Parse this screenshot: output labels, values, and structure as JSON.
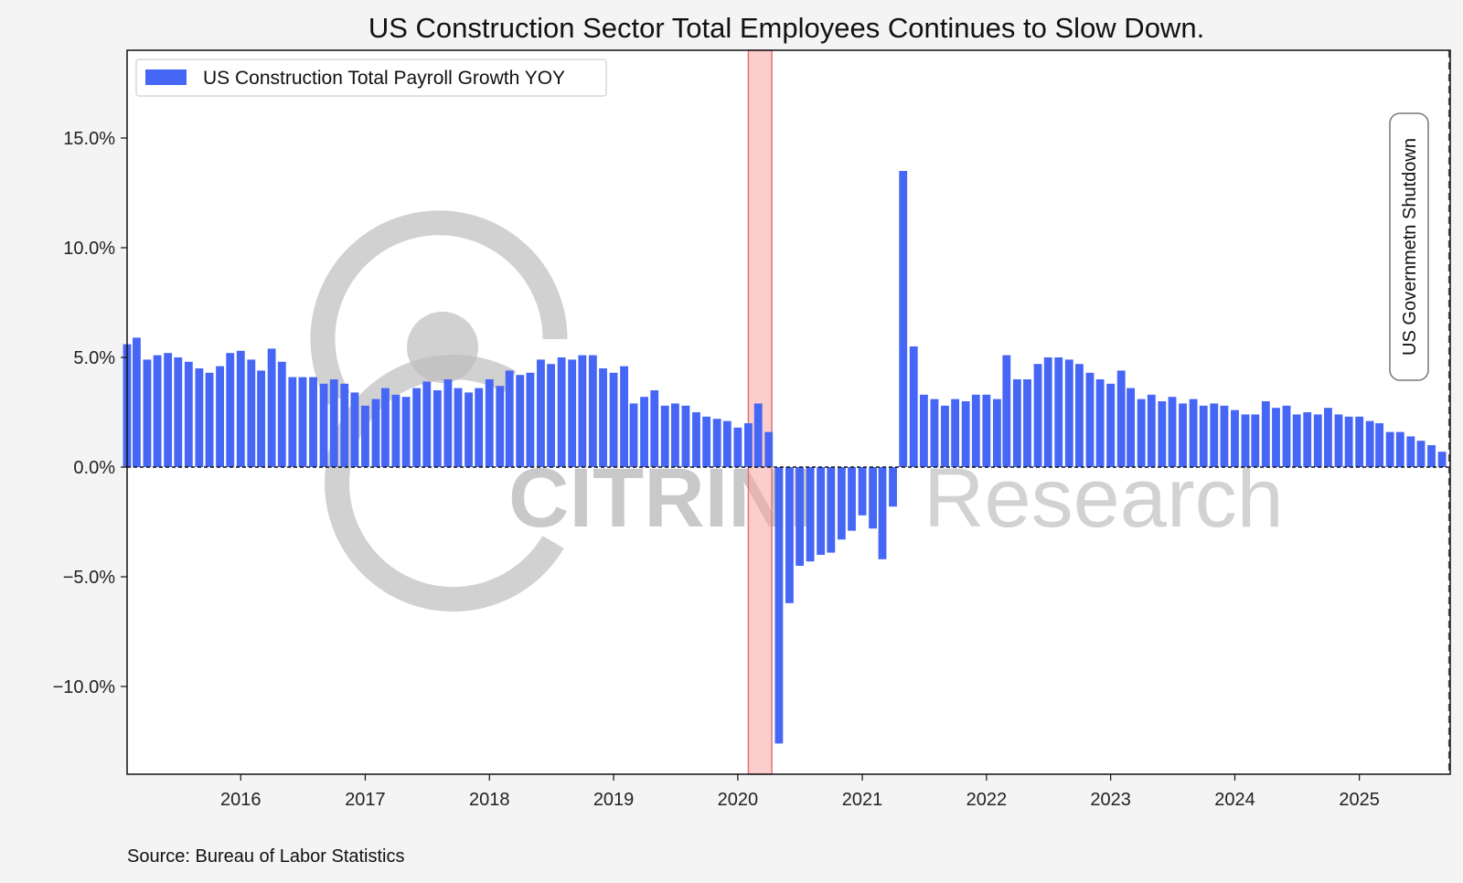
{
  "chart_data": {
    "type": "bar",
    "title": "US Construction Sector Total Employees Continues to Slow Down.",
    "source": "Source: Bureau of Labor Statistics",
    "legend": {
      "label": "US Construction Total Payroll Growth YOY",
      "placement": "top-left"
    },
    "ylim": [
      -14.0,
      19.0
    ],
    "y_ticks": [
      -10,
      -5,
      0,
      5,
      10,
      15
    ],
    "y_tick_labels": [
      "−10.0%",
      "−5.0%",
      "0.0%",
      "5.0%",
      "10.0%",
      "15.0%"
    ],
    "xlim": [
      "2015-02-01",
      "2025-09-25"
    ],
    "x_ticks": [
      "2016-01-01",
      "2017-01-01",
      "2018-01-01",
      "2019-01-01",
      "2020-01-01",
      "2021-01-01",
      "2022-01-01",
      "2023-01-01",
      "2024-01-01",
      "2025-01-01"
    ],
    "x_tick_labels": [
      "2016",
      "2017",
      "2018",
      "2019",
      "2020",
      "2021",
      "2022",
      "2023",
      "2024",
      "2025"
    ],
    "grid": false,
    "colors": {
      "bar": "#4666f5",
      "recession": "#f8a5a5",
      "recession_edge": "#e27575",
      "background": "#f4f4f4",
      "plot_background": "#ffffff"
    },
    "recession": {
      "start": "2020-02-01",
      "end": "2020-04-10"
    },
    "zero_line": 0,
    "annotation": {
      "label": "US Governmetn Shutdown",
      "date": "2025-09-22"
    },
    "watermark": {
      "brand": "CITRINI",
      "word": "Research"
    },
    "series": [
      {
        "values": [
          {
            "date": "2015-02",
            "value": 5.6
          },
          {
            "date": "2015-03",
            "value": 5.9
          },
          {
            "date": "2015-04",
            "value": 4.9
          },
          {
            "date": "2015-05",
            "value": 5.1
          },
          {
            "date": "2015-06",
            "value": 5.2
          },
          {
            "date": "2015-07",
            "value": 5.0
          },
          {
            "date": "2015-08",
            "value": 4.8
          },
          {
            "date": "2015-09",
            "value": 4.5
          },
          {
            "date": "2015-10",
            "value": 4.3
          },
          {
            "date": "2015-11",
            "value": 4.6
          },
          {
            "date": "2015-12",
            "value": 5.2
          },
          {
            "date": "2016-01",
            "value": 5.3
          },
          {
            "date": "2016-02",
            "value": 4.9
          },
          {
            "date": "2016-03",
            "value": 4.4
          },
          {
            "date": "2016-04",
            "value": 5.4
          },
          {
            "date": "2016-05",
            "value": 4.8
          },
          {
            "date": "2016-06",
            "value": 4.1
          },
          {
            "date": "2016-07",
            "value": 4.1
          },
          {
            "date": "2016-08",
            "value": 4.1
          },
          {
            "date": "2016-09",
            "value": 3.8
          },
          {
            "date": "2016-10",
            "value": 4.0
          },
          {
            "date": "2016-11",
            "value": 3.8
          },
          {
            "date": "2016-12",
            "value": 3.4
          },
          {
            "date": "2017-01",
            "value": 2.8
          },
          {
            "date": "2017-02",
            "value": 3.1
          },
          {
            "date": "2017-03",
            "value": 3.6
          },
          {
            "date": "2017-04",
            "value": 3.3
          },
          {
            "date": "2017-05",
            "value": 3.2
          },
          {
            "date": "2017-06",
            "value": 3.6
          },
          {
            "date": "2017-07",
            "value": 3.9
          },
          {
            "date": "2017-08",
            "value": 3.5
          },
          {
            "date": "2017-09",
            "value": 4.0
          },
          {
            "date": "2017-10",
            "value": 3.6
          },
          {
            "date": "2017-11",
            "value": 3.4
          },
          {
            "date": "2017-12",
            "value": 3.6
          },
          {
            "date": "2018-01",
            "value": 4.0
          },
          {
            "date": "2018-02",
            "value": 3.7
          },
          {
            "date": "2018-03",
            "value": 4.4
          },
          {
            "date": "2018-04",
            "value": 4.2
          },
          {
            "date": "2018-05",
            "value": 4.3
          },
          {
            "date": "2018-06",
            "value": 4.9
          },
          {
            "date": "2018-07",
            "value": 4.7
          },
          {
            "date": "2018-08",
            "value": 5.0
          },
          {
            "date": "2018-09",
            "value": 4.9
          },
          {
            "date": "2018-10",
            "value": 5.1
          },
          {
            "date": "2018-11",
            "value": 5.1
          },
          {
            "date": "2018-12",
            "value": 4.5
          },
          {
            "date": "2019-01",
            "value": 4.3
          },
          {
            "date": "2019-02",
            "value": 4.6
          },
          {
            "date": "2019-03",
            "value": 2.9
          },
          {
            "date": "2019-04",
            "value": 3.2
          },
          {
            "date": "2019-05",
            "value": 3.5
          },
          {
            "date": "2019-06",
            "value": 2.8
          },
          {
            "date": "2019-07",
            "value": 2.9
          },
          {
            "date": "2019-08",
            "value": 2.8
          },
          {
            "date": "2019-09",
            "value": 2.5
          },
          {
            "date": "2019-10",
            "value": 2.3
          },
          {
            "date": "2019-11",
            "value": 2.2
          },
          {
            "date": "2019-12",
            "value": 2.1
          },
          {
            "date": "2020-01",
            "value": 1.8
          },
          {
            "date": "2020-02",
            "value": 2.0
          },
          {
            "date": "2020-03",
            "value": 2.9
          },
          {
            "date": "2020-04",
            "value": 1.6
          },
          {
            "date": "2020-05",
            "value": -12.6
          },
          {
            "date": "2020-06",
            "value": -6.2
          },
          {
            "date": "2020-07",
            "value": -4.5
          },
          {
            "date": "2020-08",
            "value": -4.3
          },
          {
            "date": "2020-09",
            "value": -4.0
          },
          {
            "date": "2020-10",
            "value": -3.9
          },
          {
            "date": "2020-11",
            "value": -3.3
          },
          {
            "date": "2020-12",
            "value": -2.9
          },
          {
            "date": "2021-01",
            "value": -2.2
          },
          {
            "date": "2021-02",
            "value": -2.8
          },
          {
            "date": "2021-03",
            "value": -4.2
          },
          {
            "date": "2021-04",
            "value": -1.8
          },
          {
            "date": "2021-05",
            "value": 13.5
          },
          {
            "date": "2021-06",
            "value": 5.5
          },
          {
            "date": "2021-07",
            "value": 3.3
          },
          {
            "date": "2021-08",
            "value": 3.1
          },
          {
            "date": "2021-09",
            "value": 2.8
          },
          {
            "date": "2021-10",
            "value": 3.1
          },
          {
            "date": "2021-11",
            "value": 3.0
          },
          {
            "date": "2021-12",
            "value": 3.3
          },
          {
            "date": "2022-01",
            "value": 3.3
          },
          {
            "date": "2022-02",
            "value": 3.1
          },
          {
            "date": "2022-03",
            "value": 5.1
          },
          {
            "date": "2022-04",
            "value": 4.0
          },
          {
            "date": "2022-05",
            "value": 4.0
          },
          {
            "date": "2022-06",
            "value": 4.7
          },
          {
            "date": "2022-07",
            "value": 5.0
          },
          {
            "date": "2022-08",
            "value": 5.0
          },
          {
            "date": "2022-09",
            "value": 4.9
          },
          {
            "date": "2022-10",
            "value": 4.7
          },
          {
            "date": "2022-11",
            "value": 4.3
          },
          {
            "date": "2022-12",
            "value": 4.0
          },
          {
            "date": "2023-01",
            "value": 3.8
          },
          {
            "date": "2023-02",
            "value": 4.4
          },
          {
            "date": "2023-03",
            "value": 3.6
          },
          {
            "date": "2023-04",
            "value": 3.1
          },
          {
            "date": "2023-05",
            "value": 3.3
          },
          {
            "date": "2023-06",
            "value": 3.0
          },
          {
            "date": "2023-07",
            "value": 3.2
          },
          {
            "date": "2023-08",
            "value": 2.9
          },
          {
            "date": "2023-09",
            "value": 3.1
          },
          {
            "date": "2023-10",
            "value": 2.8
          },
          {
            "date": "2023-11",
            "value": 2.9
          },
          {
            "date": "2023-12",
            "value": 2.8
          },
          {
            "date": "2024-01",
            "value": 2.6
          },
          {
            "date": "2024-02",
            "value": 2.4
          },
          {
            "date": "2024-03",
            "value": 2.4
          },
          {
            "date": "2024-04",
            "value": 3.0
          },
          {
            "date": "2024-05",
            "value": 2.7
          },
          {
            "date": "2024-06",
            "value": 2.8
          },
          {
            "date": "2024-07",
            "value": 2.4
          },
          {
            "date": "2024-08",
            "value": 2.5
          },
          {
            "date": "2024-09",
            "value": 2.4
          },
          {
            "date": "2024-10",
            "value": 2.7
          },
          {
            "date": "2024-11",
            "value": 2.4
          },
          {
            "date": "2024-12",
            "value": 2.3
          },
          {
            "date": "2025-01",
            "value": 2.3
          },
          {
            "date": "2025-02",
            "value": 2.1
          },
          {
            "date": "2025-03",
            "value": 2.0
          },
          {
            "date": "2025-04",
            "value": 1.6
          },
          {
            "date": "2025-05",
            "value": 1.6
          },
          {
            "date": "2025-06",
            "value": 1.4
          },
          {
            "date": "2025-07",
            "value": 1.2
          },
          {
            "date": "2025-08",
            "value": 1.0
          },
          {
            "date": "2025-09",
            "value": 0.7
          }
        ]
      }
    ]
  }
}
